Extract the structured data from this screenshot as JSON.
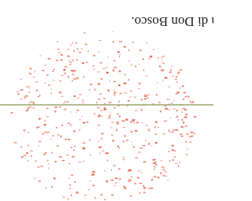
{
  "caption": "a di Don Bosco."
}
